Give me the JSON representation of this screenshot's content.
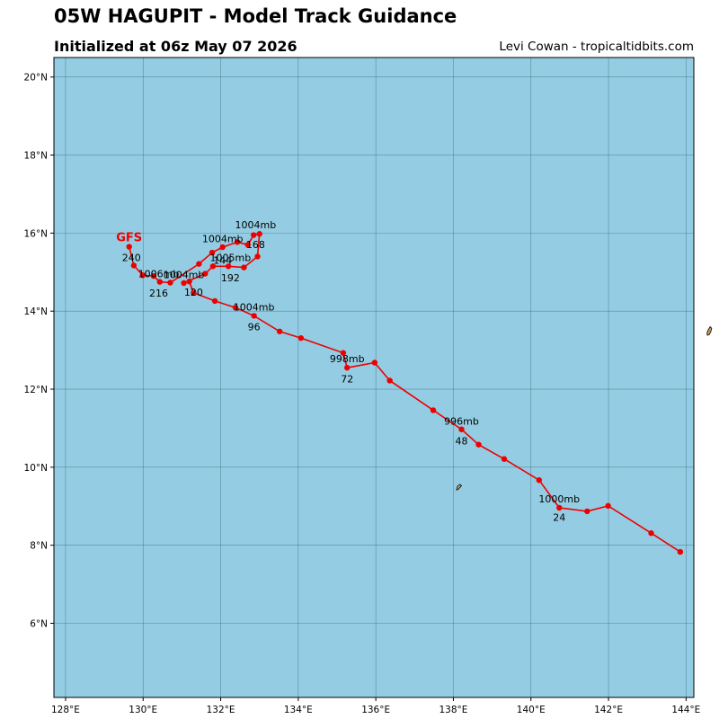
{
  "title": "05W HAGUPIT - Model Track Guidance",
  "subtitle": "Initialized at 06z May 07 2026",
  "credit": "Levi Cowan - tropicaltidbits.com",
  "colors": {
    "ocean": "#94CDE3",
    "land": "#C49A5E",
    "track": "#EE0000",
    "grid": "#3A5A6A"
  },
  "map": {
    "lon_range": [
      127.7,
      144.2
    ],
    "lat_range": [
      4.1,
      20.5
    ],
    "lon_ticks": [
      {
        "value": 128,
        "label": "128°E"
      },
      {
        "value": 130,
        "label": "130°E"
      },
      {
        "value": 132,
        "label": "132°E"
      },
      {
        "value": 134,
        "label": "134°E"
      },
      {
        "value": 136,
        "label": "136°E"
      },
      {
        "value": 138,
        "label": "138°E"
      },
      {
        "value": 140,
        "label": "140°E"
      },
      {
        "value": 142,
        "label": "142°E"
      },
      {
        "value": 144,
        "label": "144°E"
      }
    ],
    "lat_ticks": [
      {
        "value": 6,
        "label": "6°N"
      },
      {
        "value": 8,
        "label": "8°N"
      },
      {
        "value": 10,
        "label": "10°N"
      },
      {
        "value": 12,
        "label": "12°N"
      },
      {
        "value": 14,
        "label": "14°N"
      },
      {
        "value": 16,
        "label": "16°N"
      },
      {
        "value": 18,
        "label": "18°N"
      },
      {
        "value": 20,
        "label": "20°N"
      }
    ],
    "islands": [
      {
        "name": "guam",
        "points": [
          [
            144.62,
            13.6
          ],
          [
            144.66,
            13.56
          ],
          [
            144.64,
            13.48
          ],
          [
            144.6,
            13.4
          ],
          [
            144.55,
            13.38
          ],
          [
            144.54,
            13.44
          ],
          [
            144.57,
            13.52
          ]
        ]
      },
      {
        "name": "yap",
        "points": [
          [
            138.08,
            9.42
          ],
          [
            138.11,
            9.52
          ],
          [
            138.17,
            9.56
          ],
          [
            138.21,
            9.53
          ],
          [
            138.16,
            9.47
          ],
          [
            138.11,
            9.42
          ]
        ]
      }
    ]
  },
  "track": {
    "model": "GFS",
    "points": [
      [
        143.85,
        7.83
      ],
      [
        143.1,
        8.31
      ],
      [
        141.99,
        9.01
      ],
      [
        141.45,
        8.87
      ],
      [
        140.73,
        8.96
      ],
      [
        140.21,
        9.67
      ],
      [
        139.31,
        10.21
      ],
      [
        138.65,
        10.58
      ],
      [
        138.21,
        10.97
      ],
      [
        137.48,
        11.46
      ],
      [
        136.36,
        12.22
      ],
      [
        135.97,
        12.68
      ],
      [
        135.26,
        12.55
      ],
      [
        135.16,
        12.93
      ],
      [
        134.07,
        13.31
      ],
      [
        133.52,
        13.48
      ],
      [
        132.86,
        13.88
      ],
      [
        132.38,
        14.09
      ],
      [
        131.85,
        14.26
      ],
      [
        131.3,
        14.47
      ],
      [
        131.19,
        14.76
      ],
      [
        131.05,
        14.72
      ],
      [
        131.6,
        14.96
      ],
      [
        131.8,
        15.15
      ],
      [
        132.2,
        15.15
      ],
      [
        132.6,
        15.12
      ],
      [
        132.95,
        15.4
      ],
      [
        133.0,
        15.98
      ],
      [
        132.85,
        15.95
      ],
      [
        132.7,
        15.7
      ],
      [
        132.43,
        15.77
      ],
      [
        132.05,
        15.64
      ],
      [
        131.78,
        15.5
      ],
      [
        131.44,
        15.21
      ],
      [
        130.7,
        14.73
      ],
      [
        130.43,
        14.75
      ],
      [
        130.27,
        14.9
      ],
      [
        129.99,
        14.92
      ],
      [
        129.76,
        15.17
      ],
      [
        129.64,
        15.65
      ]
    ],
    "hour_labels": [
      {
        "text": "24",
        "lon": 140.73,
        "lat": 8.72
      },
      {
        "text": "48",
        "lon": 138.21,
        "lat": 10.68
      },
      {
        "text": "72",
        "lon": 135.26,
        "lat": 12.27
      },
      {
        "text": "96",
        "lon": 132.86,
        "lat": 13.6
      },
      {
        "text": "120",
        "lon": 131.3,
        "lat": 14.49
      },
      {
        "text": "144",
        "lon": 132.05,
        "lat": 15.31
      },
      {
        "text": "168",
        "lon": 132.9,
        "lat": 15.71
      },
      {
        "text": "192",
        "lon": 132.25,
        "lat": 14.86
      },
      {
        "text": "216",
        "lon": 130.4,
        "lat": 14.47
      },
      {
        "text": "240",
        "lon": 129.7,
        "lat": 15.37
      }
    ],
    "pressure_labels": [
      {
        "text": "1000mb",
        "lon": 140.73,
        "lat": 9.19
      },
      {
        "text": "996mb",
        "lon": 138.21,
        "lat": 11.18
      },
      {
        "text": "998mb",
        "lon": 135.26,
        "lat": 12.78
      },
      {
        "text": "1004mb",
        "lon": 132.86,
        "lat": 14.11
      },
      {
        "text": "1004mb",
        "lon": 131.05,
        "lat": 14.94
      },
      {
        "text": "1005mb",
        "lon": 132.25,
        "lat": 15.38
      },
      {
        "text": "1004mb",
        "lon": 132.05,
        "lat": 15.86
      },
      {
        "text": "1004mb",
        "lon": 132.9,
        "lat": 16.21
      },
      {
        "text": "1006mb",
        "lon": 130.4,
        "lat": 14.96
      }
    ],
    "model_label": {
      "lon": 129.64,
      "lat": 15.9
    }
  }
}
